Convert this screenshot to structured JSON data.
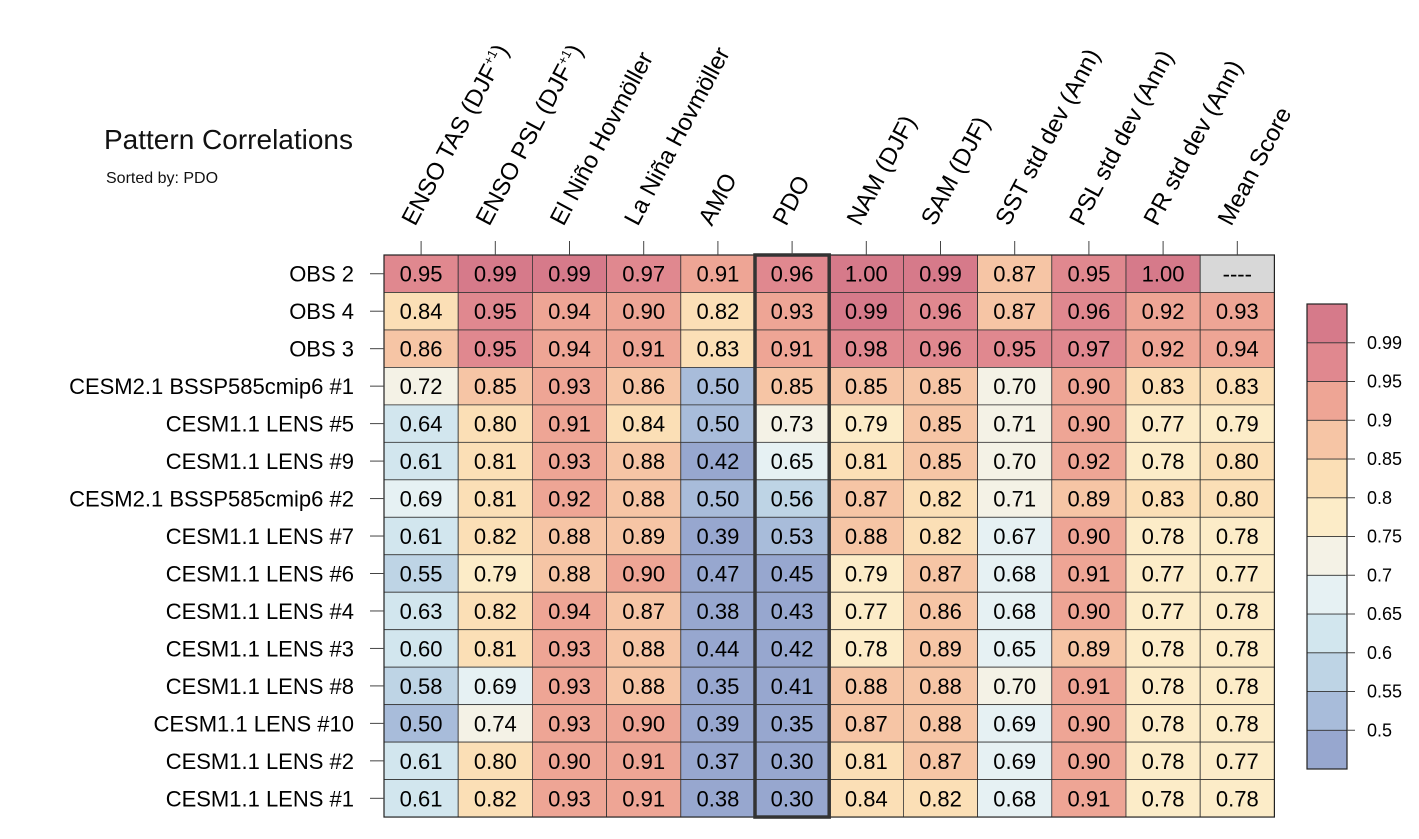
{
  "title": "Pattern Correlations",
  "subtitle": "Sorted by: PDO",
  "chart_data": {
    "type": "heatmap",
    "title": "Pattern Correlations",
    "subtitle": "Sorted by: PDO",
    "sorted_by": "PDO",
    "highlight_column": "PDO",
    "columns": [
      {
        "text": "ENSO TAS (DJF",
        "sup": "+1",
        "tail": ")"
      },
      {
        "text": "ENSO PSL (DJF",
        "sup": "+1",
        "tail": ")"
      },
      {
        "text": "El Niño Hovmöller",
        "sup": "",
        "tail": ""
      },
      {
        "text": "La Niña Hovmöller",
        "sup": "",
        "tail": ""
      },
      {
        "text": "AMO",
        "sup": "",
        "tail": ""
      },
      {
        "text": "PDO",
        "sup": "",
        "tail": ""
      },
      {
        "text": "NAM (DJF)",
        "sup": "",
        "tail": ""
      },
      {
        "text": "SAM (DJF)",
        "sup": "",
        "tail": ""
      },
      {
        "text": "SST std dev (Ann)",
        "sup": "",
        "tail": ""
      },
      {
        "text": "PSL std dev (Ann)",
        "sup": "",
        "tail": ""
      },
      {
        "text": "PR std dev (Ann)",
        "sup": "",
        "tail": ""
      },
      {
        "text": "Mean Score",
        "sup": "",
        "tail": ""
      }
    ],
    "rows": [
      "OBS 2",
      "OBS 4",
      "OBS 3",
      "CESM2.1 BSSP585cmip6 #1",
      "CESM1.1 LENS #5",
      "CESM1.1 LENS #9",
      "CESM2.1 BSSP585cmip6 #2",
      "CESM1.1 LENS #7",
      "CESM1.1 LENS #6",
      "CESM1.1 LENS #4",
      "CESM1.1 LENS #3",
      "CESM1.1 LENS #8",
      "CESM1.1 LENS #10",
      "CESM1.1 LENS #2",
      "CESM1.1 LENS #1"
    ],
    "values": [
      [
        "0.95",
        "0.99",
        "0.99",
        "0.97",
        "0.91",
        "0.96",
        "1.00",
        "0.99",
        "0.87",
        "0.95",
        "1.00",
        "----"
      ],
      [
        "0.84",
        "0.95",
        "0.94",
        "0.90",
        "0.82",
        "0.93",
        "0.99",
        "0.96",
        "0.87",
        "0.96",
        "0.92",
        "0.93"
      ],
      [
        "0.86",
        "0.95",
        "0.94",
        "0.91",
        "0.83",
        "0.91",
        "0.98",
        "0.96",
        "0.95",
        "0.97",
        "0.92",
        "0.94"
      ],
      [
        "0.72",
        "0.85",
        "0.93",
        "0.86",
        "0.50",
        "0.85",
        "0.85",
        "0.85",
        "0.70",
        "0.90",
        "0.83",
        "0.83"
      ],
      [
        "0.64",
        "0.80",
        "0.91",
        "0.84",
        "0.50",
        "0.73",
        "0.79",
        "0.85",
        "0.71",
        "0.90",
        "0.77",
        "0.79"
      ],
      [
        "0.61",
        "0.81",
        "0.93",
        "0.88",
        "0.42",
        "0.65",
        "0.81",
        "0.85",
        "0.70",
        "0.92",
        "0.78",
        "0.80"
      ],
      [
        "0.69",
        "0.81",
        "0.92",
        "0.88",
        "0.50",
        "0.56",
        "0.87",
        "0.82",
        "0.71",
        "0.89",
        "0.83",
        "0.80"
      ],
      [
        "0.61",
        "0.82",
        "0.88",
        "0.89",
        "0.39",
        "0.53",
        "0.88",
        "0.82",
        "0.67",
        "0.90",
        "0.78",
        "0.78"
      ],
      [
        "0.55",
        "0.79",
        "0.88",
        "0.90",
        "0.47",
        "0.45",
        "0.79",
        "0.87",
        "0.68",
        "0.91",
        "0.77",
        "0.77"
      ],
      [
        "0.63",
        "0.82",
        "0.94",
        "0.87",
        "0.38",
        "0.43",
        "0.77",
        "0.86",
        "0.68",
        "0.90",
        "0.77",
        "0.78"
      ],
      [
        "0.60",
        "0.81",
        "0.93",
        "0.88",
        "0.44",
        "0.42",
        "0.78",
        "0.89",
        "0.65",
        "0.89",
        "0.78",
        "0.78"
      ],
      [
        "0.58",
        "0.69",
        "0.93",
        "0.88",
        "0.35",
        "0.41",
        "0.88",
        "0.88",
        "0.70",
        "0.91",
        "0.78",
        "0.78"
      ],
      [
        "0.50",
        "0.74",
        "0.93",
        "0.90",
        "0.39",
        "0.35",
        "0.87",
        "0.88",
        "0.69",
        "0.90",
        "0.78",
        "0.78"
      ],
      [
        "0.61",
        "0.80",
        "0.90",
        "0.91",
        "0.37",
        "0.30",
        "0.81",
        "0.87",
        "0.69",
        "0.90",
        "0.78",
        "0.77"
      ],
      [
        "0.61",
        "0.82",
        "0.93",
        "0.91",
        "0.38",
        "0.30",
        "0.84",
        "0.82",
        "0.68",
        "0.91",
        "0.78",
        "0.78"
      ]
    ],
    "missing_text": "----",
    "colorbar": {
      "levels": [
        0.5,
        0.55,
        0.6,
        0.65,
        0.7,
        0.75,
        0.8,
        0.85,
        0.9,
        0.95,
        0.99
      ],
      "labels": [
        "0.5",
        "0.55",
        "0.6",
        "0.65",
        "0.7",
        "0.75",
        "0.8",
        "0.85",
        "0.9",
        "0.95",
        "0.99"
      ],
      "colors": [
        "#97a7cf",
        "#a8bcda",
        "#bed4e5",
        "#d2e6ee",
        "#e6f1f3",
        "#f4f2e6",
        "#fcecc8",
        "#fbdfb6",
        "#f6c5a5",
        "#eea595",
        "#e0888f",
        "#d67a8a"
      ],
      "missing_color": "#d8d8d8"
    }
  }
}
